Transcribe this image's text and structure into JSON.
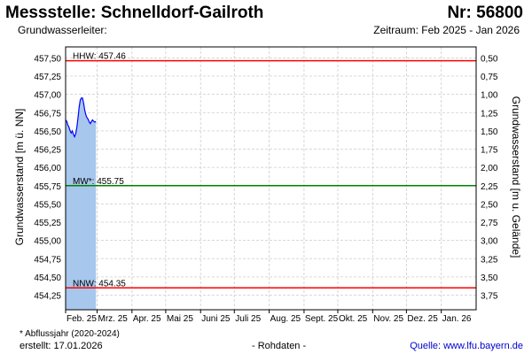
{
  "header": {
    "title": "Messstelle: Schnelldorf-Gailroth",
    "station_nr": "Nr: 56800",
    "aquifer": "Grundwasserleiter:",
    "period": "Zeitraum: Feb 2025 - Jan 2026"
  },
  "footer": {
    "note": "* Abflussjahr (2020-2024)",
    "created": "erstellt:  17.01.2026",
    "raw": "- Rohdaten -",
    "source": "Quelle: www.lfu.bayern.de"
  },
  "colors": {
    "series_line": "#0000ff",
    "series_fill": "#a7c7ec",
    "hhw_line": "#ff0000",
    "mw_line": "#008000",
    "nnw_line": "#ff0000",
    "grid": "#cccccc"
  },
  "chart_data": {
    "type": "area",
    "ylabel_left": "Grundwasserstand [m ü. NN]",
    "ylabel_right": "Grundwasserstand [m u. Gelände]",
    "ylim": [
      454.05,
      457.65
    ],
    "y_ticks_left": [
      "457,50",
      "457,25",
      "457,00",
      "456,75",
      "456,50",
      "456,25",
      "456,00",
      "455,75",
      "455,50",
      "455,25",
      "455,00",
      "454,75",
      "454,50",
      "454,25"
    ],
    "y_ticks_right": [
      "0,50",
      "0,75",
      "1,00",
      "1,25",
      "1,50",
      "1,75",
      "2,00",
      "2,25",
      "2,50",
      "2,75",
      "3,00",
      "3,25",
      "3,50",
      "3,75"
    ],
    "x_ticks": [
      "Feb. 25",
      "Mrz. 25",
      "Apr. 25",
      "Mai 25",
      "Juni 25",
      "Juli 25",
      "Aug. 25",
      "Sept. 25",
      "Okt. 25",
      "Nov. 25",
      "Dez. 25",
      "Jan. 26"
    ],
    "grid": true,
    "reference_lines": [
      {
        "label": "HHW: 457.46",
        "value": 457.46
      },
      {
        "label": "MW*: 455.75",
        "value": 455.75
      },
      {
        "label": "NNW: 454.35",
        "value": 454.35
      }
    ],
    "series": [
      {
        "x": [
          "2025-02-01",
          "2025-02-02",
          "2025-02-03",
          "2025-02-04",
          "2025-02-05",
          "2025-02-06",
          "2025-02-07",
          "2025-02-08",
          "2025-02-09",
          "2025-02-10",
          "2025-02-11",
          "2025-02-12",
          "2025-02-13",
          "2025-02-14",
          "2025-02-15",
          "2025-02-16",
          "2025-02-17",
          "2025-02-18",
          "2025-02-19",
          "2025-02-20",
          "2025-02-21",
          "2025-02-22",
          "2025-02-23",
          "2025-02-24",
          "2025-02-25",
          "2025-02-26",
          "2025-02-27",
          "2025-02-28"
        ],
        "values": [
          456.65,
          456.63,
          456.58,
          456.55,
          456.5,
          456.47,
          456.5,
          456.45,
          456.42,
          456.46,
          456.55,
          456.68,
          456.82,
          456.92,
          456.95,
          456.95,
          456.88,
          456.78,
          456.72,
          456.68,
          456.66,
          456.62,
          456.6,
          456.63,
          456.65,
          456.63,
          456.62,
          456.63
        ]
      }
    ]
  }
}
